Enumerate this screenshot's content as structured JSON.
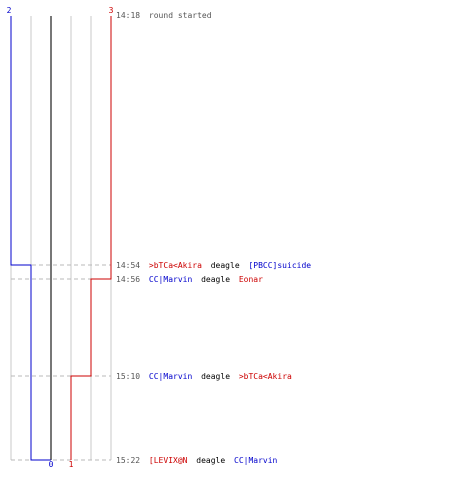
{
  "colors": {
    "team_blue": "#0000cc",
    "team_red": "#cc0000",
    "grid": "#c8c8c8",
    "center": "#777777",
    "guide": "#b8b8b8",
    "time_text": "#555555",
    "action_text": "#000000"
  },
  "scores": {
    "blue_start": "2",
    "red_start": "3",
    "blue_end": "0",
    "red_end": "1"
  },
  "events": [
    {
      "time": "14:18",
      "text": "round started"
    },
    {
      "time": "14:54",
      "killer": ">bTCa<Akira",
      "killer_team": "red",
      "weapon": "deagle",
      "victim": "[PBCC]suicide",
      "victim_team": "blue"
    },
    {
      "time": "14:56",
      "killer": "CC|Marvin",
      "killer_team": "blue",
      "weapon": "deagle",
      "victim": "Eonar",
      "victim_team": "red"
    },
    {
      "time": "15:10",
      "killer": "CC|Marvin",
      "killer_team": "blue",
      "weapon": "deagle",
      "victim": ">bTCa<Akira",
      "victim_team": "red"
    },
    {
      "time": "15:22",
      "killer": "[LEVIX@N",
      "killer_team": "red",
      "weapon": "deagle",
      "victim": "CC|Marvin",
      "victim_team": "blue"
    }
  ]
}
